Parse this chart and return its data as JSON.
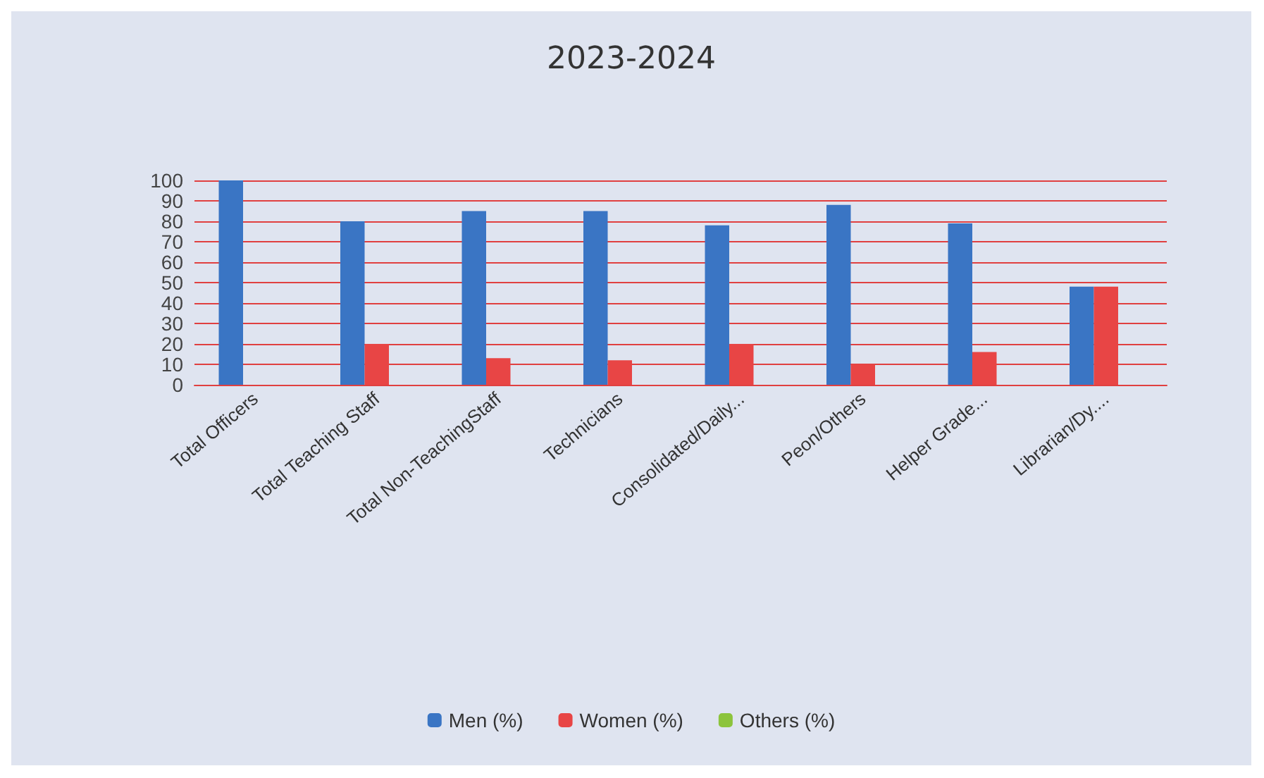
{
  "chart_data": {
    "type": "bar",
    "title": "2023-2024",
    "categories": [
      "Total Officers",
      "Total Teaching Staff",
      "Total Non-TeachingStaff",
      "Technicians",
      "Consolidated/Daily...",
      "Peon/Others",
      "Helper Grade...",
      "Librarian/Dy...."
    ],
    "series": [
      {
        "name": "Men (%)",
        "color": "#3a75c4",
        "values": [
          100,
          80,
          85,
          85,
          78,
          88,
          79,
          48
        ]
      },
      {
        "name": "Women (%)",
        "color": "#e84545",
        "values": [
          0,
          20,
          13,
          12,
          20,
          10,
          16,
          48
        ]
      },
      {
        "name": "Others (%)",
        "color": "#8cc43c",
        "values": [
          0,
          0,
          0,
          0,
          0,
          0,
          0,
          0
        ]
      }
    ],
    "ylim": [
      0,
      100
    ],
    "yticks": [
      0,
      10,
      20,
      30,
      40,
      50,
      60,
      70,
      80,
      90,
      100
    ],
    "grid": "y",
    "legend": "bottom"
  }
}
